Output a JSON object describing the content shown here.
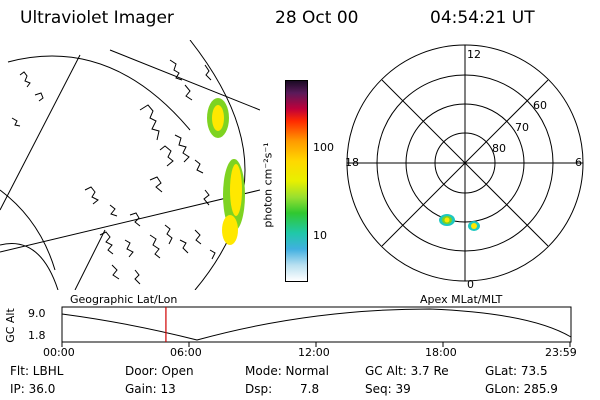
{
  "header": {
    "title": "Ultraviolet Imager",
    "date": "28 Oct 00",
    "time": "04:54:21 UT"
  },
  "colorbar": {
    "unit": "photon cm⁻²s⁻¹",
    "ticks": [
      "100",
      "10"
    ]
  },
  "geo_panel": {
    "label": "Geographic Lat/Lon"
  },
  "polar_panel": {
    "label": "Apex MLat/MLT",
    "mlt_labels": {
      "top": "12",
      "left": "18",
      "right": "6",
      "bottom": "0"
    },
    "lat_labels": [
      "60",
      "70",
      "80"
    ]
  },
  "alt_panel": {
    "ylabel": "GC Alt",
    "yticks": [
      "9.0",
      "1.8"
    ],
    "xticks": [
      "00:00",
      "06:00",
      "12:00",
      "18:00",
      "23:59"
    ],
    "current_time_hours": 4.9
  },
  "status": {
    "flt": "Flt: LBHL",
    "ip": "IP: 36.0",
    "door": "Door: Open",
    "gain": "Gain: 13",
    "mode": "Mode: Normal",
    "dsp": "Dsp:",
    "dsp_val": "7.8",
    "gc_alt": "GC Alt: 3.7 Re",
    "seq": "Seq: 39",
    "glat": "GLat: 73.5",
    "glon": "GLon: 285.9"
  },
  "colors": {
    "high": "#1a0a24",
    "peak_red": "#d40000",
    "orange": "#ff9a00",
    "yellow": "#ffe800",
    "green": "#7ed321",
    "teal": "#1ec8c0",
    "cursor": "#d00000"
  }
}
